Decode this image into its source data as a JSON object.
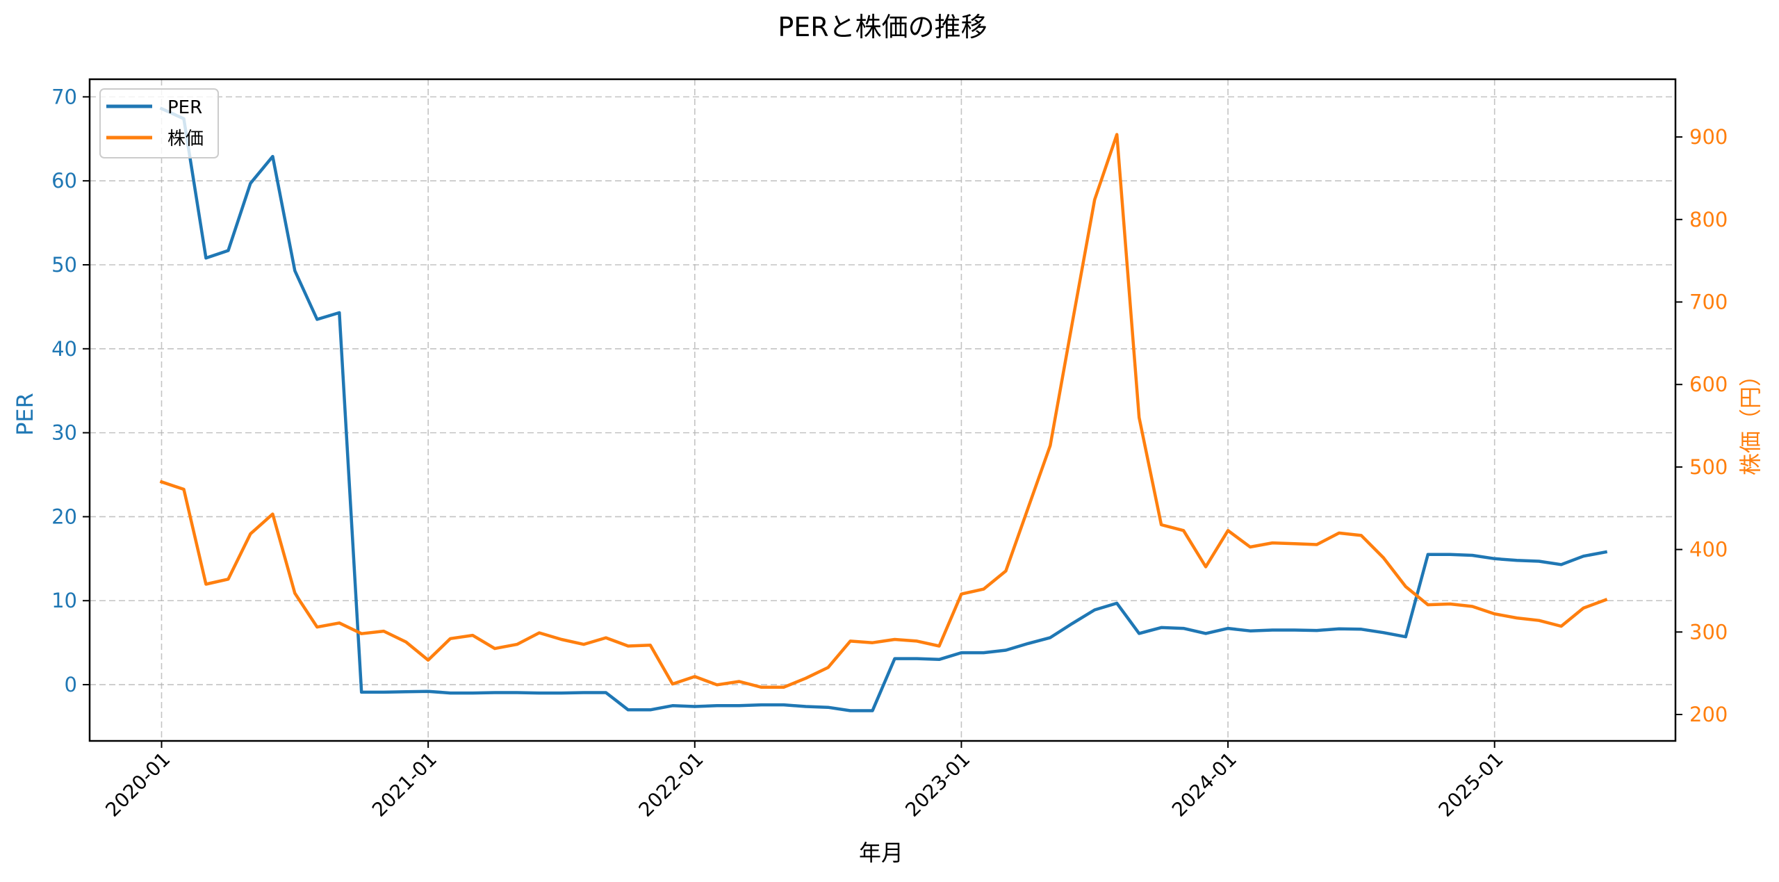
{
  "chart_data": {
    "type": "line",
    "title": "PERと株価の推移",
    "xlabel": "年月",
    "ylabel": "PER",
    "ylabel_right": "株価（円）",
    "x_tick_labels": [
      "2020-01",
      "2021-01",
      "2022-01",
      "2023-01",
      "2024-01",
      "2025-01"
    ],
    "y_ticks_left": [
      0,
      10,
      20,
      30,
      40,
      50,
      60,
      70
    ],
    "y_ticks_right": [
      200,
      300,
      400,
      500,
      600,
      700,
      800,
      900
    ],
    "ylim_left": [
      -6.7,
      72.1
    ],
    "ylim_right": [
      168,
      970
    ],
    "grid": true,
    "legend_position": "upper left",
    "legend": [
      "PER",
      "株価"
    ],
    "colors": {
      "PER": "#1f77b4",
      "株価": "#ff7f0e"
    },
    "x": [
      "2020-01",
      "2020-02",
      "2020-03",
      "2020-04",
      "2020-05",
      "2020-06",
      "2020-07",
      "2020-08",
      "2020-09",
      "2020-10",
      "2020-11",
      "2020-12",
      "2021-01",
      "2021-02",
      "2021-03",
      "2021-04",
      "2021-05",
      "2021-06",
      "2021-07",
      "2021-08",
      "2021-09",
      "2021-10",
      "2021-11",
      "2021-12",
      "2022-01",
      "2022-02",
      "2022-03",
      "2022-04",
      "2022-05",
      "2022-06",
      "2022-07",
      "2022-08",
      "2022-09",
      "2022-10",
      "2022-11",
      "2022-12",
      "2023-01",
      "2023-02",
      "2023-03",
      "2023-04",
      "2023-05",
      "2023-06",
      "2023-07",
      "2023-08",
      "2023-09",
      "2023-10",
      "2023-11",
      "2023-12",
      "2024-01",
      "2024-02",
      "2024-03",
      "2024-04",
      "2024-05",
      "2024-06",
      "2024-07",
      "2024-08",
      "2024-09",
      "2024-10",
      "2024-11",
      "2024-12",
      "2025-01",
      "2025-02",
      "2025-03",
      "2025-04",
      "2025-05",
      "2025-06"
    ],
    "series": [
      {
        "name": "PER",
        "axis": "left",
        "values": [
          68.6,
          67.4,
          50.8,
          51.7,
          59.7,
          62.9,
          49.3,
          43.5,
          44.3,
          -0.9,
          -0.9,
          -0.85,
          -0.8,
          -1.0,
          -1.0,
          -0.95,
          -0.95,
          -1.0,
          -1.0,
          -0.95,
          -0.95,
          -3.0,
          -3.0,
          -2.5,
          -2.6,
          -2.5,
          -2.5,
          -2.4,
          -2.4,
          -2.6,
          -2.7,
          -3.1,
          -3.1,
          3.1,
          3.1,
          3.0,
          3.8,
          3.8,
          4.1,
          4.9,
          5.6,
          7.3,
          8.9,
          9.7,
          6.1,
          6.8,
          6.7,
          6.1,
          6.7,
          6.4,
          6.5,
          6.5,
          6.45,
          6.65,
          6.6,
          6.2,
          5.7,
          15.5,
          15.5,
          15.4,
          15.0,
          14.8,
          14.7,
          14.3,
          15.3,
          15.8
        ]
      },
      {
        "name": "株価",
        "axis": "right",
        "values": [
          482,
          473,
          358,
          364,
          419,
          443,
          347,
          306,
          311,
          298,
          301,
          288,
          266,
          292,
          296,
          280,
          285,
          299,
          291,
          285,
          293,
          283,
          284,
          237,
          246,
          236,
          240,
          233,
          233,
          244,
          257,
          289,
          287,
          291,
          289,
          283,
          346,
          352,
          374,
          450,
          526,
          676,
          824,
          903,
          560,
          430,
          423,
          379,
          423,
          403,
          408,
          407,
          406,
          420,
          417,
          390,
          355,
          333,
          334,
          331,
          322,
          317,
          314,
          307,
          329,
          339
        ]
      }
    ]
  }
}
